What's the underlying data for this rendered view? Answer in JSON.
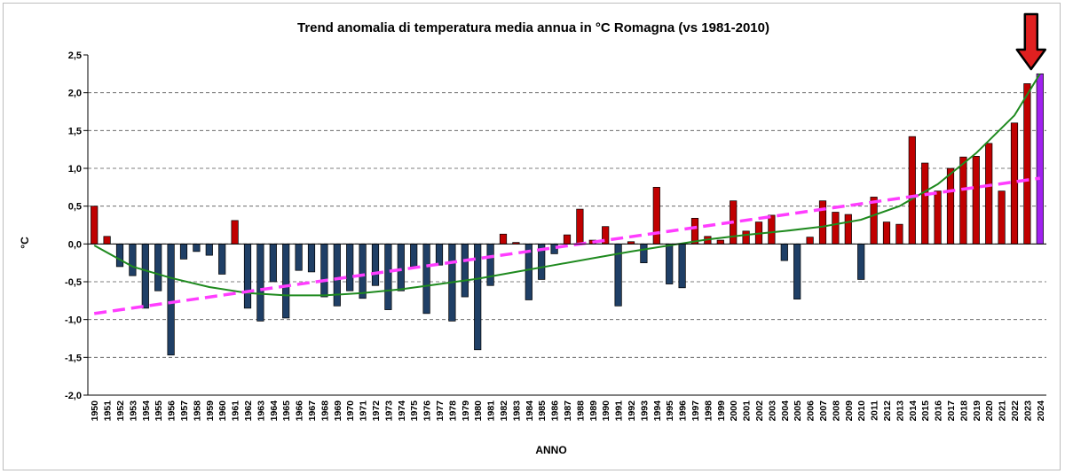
{
  "chart_data": {
    "type": "bar",
    "title": "Trend anomalia di temperatura media annua in °C Romagna (vs 1981-2010)",
    "xlabel": "ANNO",
    "ylabel": "°C",
    "ylim": [
      -2.0,
      2.5
    ],
    "ytick_step": 0.5,
    "ytick_labels": [
      "2,5",
      "2,0",
      "1,5",
      "1,0",
      "0,5",
      "0,0",
      "-0,5",
      "-1,0",
      "-1,5",
      "-2,0"
    ],
    "grid": "horizontal dashed",
    "categories": [
      "1950",
      "1951",
      "1952",
      "1953",
      "1954",
      "1955",
      "1956",
      "1957",
      "1958",
      "1959",
      "1960",
      "1961",
      "1962",
      "1963",
      "1964",
      "1965",
      "1966",
      "1967",
      "1968",
      "1969",
      "1970",
      "1971",
      "1972",
      "1973",
      "1974",
      "1975",
      "1976",
      "1977",
      "1978",
      "1979",
      "1980",
      "1981",
      "1982",
      "1983",
      "1984",
      "1985",
      "1986",
      "1987",
      "1988",
      "1989",
      "1990",
      "1991",
      "1992",
      "1993",
      "1994",
      "1995",
      "1996",
      "1997",
      "1998",
      "1999",
      "2000",
      "2001",
      "2002",
      "2003",
      "2004",
      "2005",
      "2006",
      "2007",
      "2008",
      "2009",
      "2010",
      "2011",
      "2012",
      "2013",
      "2014",
      "2015",
      "2016",
      "2017",
      "2018",
      "2019",
      "2020",
      "2021",
      "2022",
      "2023",
      "2024"
    ],
    "values": [
      0.5,
      0.1,
      -0.3,
      -0.42,
      -0.85,
      -0.62,
      -1.47,
      -0.2,
      -0.1,
      -0.15,
      -0.4,
      0.31,
      -0.85,
      -1.02,
      -0.5,
      -0.98,
      -0.35,
      -0.37,
      -0.7,
      -0.82,
      -0.62,
      -0.72,
      -0.55,
      -0.87,
      -0.62,
      -0.3,
      -0.92,
      -0.28,
      -1.02,
      -0.7,
      -1.4,
      -0.55,
      0.13,
      0.02,
      -0.74,
      -0.47,
      -0.13,
      0.12,
      0.46,
      0.05,
      0.23,
      -0.82,
      0.03,
      -0.25,
      0.75,
      -0.53,
      -0.58,
      0.34,
      0.1,
      0.05,
      0.57,
      0.17,
      0.29,
      0.38,
      -0.22,
      -0.73,
      0.09,
      0.57,
      0.42,
      0.39,
      -0.47,
      0.62,
      0.29,
      0.26,
      1.42,
      1.07,
      0.7,
      1.0,
      1.15,
      1.16,
      1.33,
      0.7,
      1.6,
      2.12,
      2.25
    ],
    "series_colors": {
      "positive": "#c00000",
      "negative": "#1f3f66",
      "highlight": "#a020f0",
      "linear_trend": "#ff3dff",
      "polynomial_trend": "#1f8a1f",
      "arrow": "#e02020"
    },
    "linear_trend": {
      "start_year": "1950",
      "start_value": -0.92,
      "end_year": "2024",
      "end_value": 0.87
    },
    "polynomial_trend": {
      "x": [
        "1950",
        "1953",
        "1956",
        "1959",
        "1962",
        "1965",
        "1968",
        "1971",
        "1974",
        "1977",
        "1980",
        "1983",
        "1986",
        "1989",
        "1992",
        "1995",
        "1998",
        "2001",
        "2004",
        "2007",
        "2010",
        "2013",
        "2016",
        "2019",
        "2022",
        "2024"
      ],
      "values": [
        -0.02,
        -0.3,
        -0.45,
        -0.57,
        -0.65,
        -0.68,
        -0.68,
        -0.65,
        -0.6,
        -0.53,
        -0.46,
        -0.37,
        -0.28,
        -0.19,
        -0.1,
        -0.02,
        0.06,
        0.12,
        0.17,
        0.23,
        0.32,
        0.5,
        0.79,
        1.2,
        1.7,
        2.25
      ]
    },
    "highlight_year": "2024"
  }
}
